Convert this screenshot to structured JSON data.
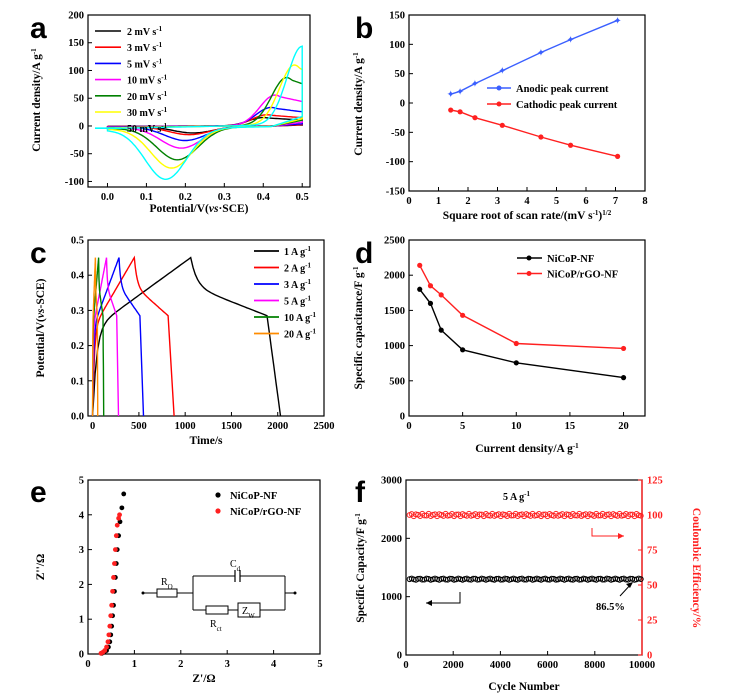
{
  "chart_data": [
    {
      "panel": "a",
      "type": "line",
      "xlabel_parts": [
        "Potential/V(",
        "vs",
        "·SCE)"
      ],
      "ylabel": "Current density/A g",
      "ylabel_sup": "-1",
      "xlim": [
        -0.05,
        0.52
      ],
      "ylim": [
        -110,
        200
      ],
      "xticks": [
        "0.0",
        "0.1",
        "0.2",
        "0.3",
        "0.4",
        "0.5"
      ],
      "yticks": [
        "-100",
        "-50",
        "0",
        "50",
        "100",
        "150",
        "200"
      ],
      "legend_unit": "mV s",
      "legend_unit_sup": "-1",
      "legend_position": "top-left",
      "series": [
        {
          "name": "2",
          "color": "#000000",
          "anodic_peak": [
            0.4,
            15
          ],
          "cathodic_peak": [
            0.22,
            -12
          ]
        },
        {
          "name": "3",
          "color": "#ff0000",
          "anodic_peak": [
            0.41,
            20
          ],
          "cathodic_peak": [
            0.21,
            -15
          ]
        },
        {
          "name": "5",
          "color": "#0000ff",
          "anodic_peak": [
            0.42,
            33
          ],
          "cathodic_peak": [
            0.2,
            -25
          ]
        },
        {
          "name": "10",
          "color": "#ff00ff",
          "anodic_peak": [
            0.43,
            55
          ],
          "cathodic_peak": [
            0.19,
            -38
          ]
        },
        {
          "name": "20",
          "color": "#008000",
          "anodic_peak": [
            0.46,
            86
          ],
          "cathodic_peak": [
            0.18,
            -58
          ]
        },
        {
          "name": "30",
          "color": "#ffff00",
          "anodic_peak": [
            0.48,
            108
          ],
          "cathodic_peak": [
            0.165,
            -72
          ]
        },
        {
          "name": "50",
          "color": "#00ffff",
          "anodic_peak": [
            0.5,
            141
          ],
          "cathodic_peak": [
            0.15,
            -91
          ]
        }
      ]
    },
    {
      "panel": "b",
      "type": "line",
      "xlabel": "Square root of scan rate/(mV s",
      "xlabel_sup1": "-1",
      "xlabel_mid": ")",
      "xlabel_sup2": "1/2",
      "ylabel": "Current density/A g",
      "ylabel_sup": "-1",
      "xlim": [
        0,
        8
      ],
      "ylim": [
        -150,
        150
      ],
      "xticks": [
        "0",
        "1",
        "2",
        "3",
        "4",
        "5",
        "6",
        "7",
        "8"
      ],
      "yticks": [
        "-150",
        "-100",
        "-50",
        "0",
        "50",
        "100",
        "150"
      ],
      "legend_position": "center-right",
      "x": [
        1.414,
        1.732,
        2.236,
        3.162,
        4.472,
        5.477,
        7.071
      ],
      "series": [
        {
          "name": "Anodic peak current",
          "color": "#3a5fff",
          "values": [
            15,
            20,
            33,
            55,
            86,
            108,
            141
          ]
        },
        {
          "name": "Cathodic peak current",
          "color": "#ff2020",
          "values": [
            -12,
            -15,
            -25,
            -38,
            -58,
            -72,
            -91
          ]
        }
      ]
    },
    {
      "panel": "c",
      "type": "line",
      "xlabel": "Time/s",
      "ylabel_parts": [
        "Potential/V(",
        "vs",
        "-SCE)"
      ],
      "xlim": [
        -50,
        2500
      ],
      "ylim": [
        0,
        0.5
      ],
      "xticks": [
        "0",
        "500",
        "1000",
        "1500",
        "2000",
        "2500"
      ],
      "yticks": [
        "0.0",
        "0.1",
        "0.2",
        "0.3",
        "0.4",
        "0.5"
      ],
      "legend_unit": "A g",
      "legend_unit_sup": "-1",
      "legend_position": "top-right",
      "series": [
        {
          "name": "1",
          "color": "#000000",
          "charge_time": 1060,
          "end_time": 2030
        },
        {
          "name": "2",
          "color": "#ff0000",
          "charge_time": 450,
          "end_time": 880
        },
        {
          "name": "3",
          "color": "#0000ff",
          "charge_time": 285,
          "end_time": 550
        },
        {
          "name": "5",
          "color": "#ff00ff",
          "charge_time": 150,
          "end_time": 280
        },
        {
          "name": "10",
          "color": "#008000",
          "charge_time": 65,
          "end_time": 120
        },
        {
          "name": "20",
          "color": "#ff8c00",
          "charge_time": 30,
          "end_time": 55
        }
      ]
    },
    {
      "panel": "d",
      "type": "line",
      "xlabel": "Current density/A g",
      "xlabel_sup": "-1",
      "ylabel": "Specific capacitance/F g",
      "ylabel_sup": "-1",
      "xlim": [
        0,
        22
      ],
      "ylim": [
        0,
        2500
      ],
      "xticks": [
        "0",
        "5",
        "10",
        "15",
        "20"
      ],
      "yticks": [
        "0",
        "500",
        "1000",
        "1500",
        "2000",
        "2500"
      ],
      "legend_position": "top-right",
      "x": [
        1,
        2,
        3,
        5,
        10,
        20
      ],
      "series": [
        {
          "name": "NiCoP-NF",
          "color": "#000000",
          "values": [
            1800,
            1600,
            1220,
            940,
            755,
            545
          ]
        },
        {
          "name": "NiCoP/rGO-NF",
          "color": "#ff2020",
          "values": [
            2140,
            1850,
            1720,
            1430,
            1030,
            960
          ]
        }
      ]
    },
    {
      "panel": "e",
      "type": "scatter",
      "xlabel": "Z'/Ω",
      "ylabel": "Z''/Ω",
      "xlim": [
        0,
        5
      ],
      "ylim": [
        0,
        5
      ],
      "xticks": [
        "0",
        "1",
        "2",
        "3",
        "4",
        "5"
      ],
      "yticks": [
        "0",
        "1",
        "2",
        "3",
        "4",
        "5"
      ],
      "legend_position": "top-right",
      "circuit_labels": {
        "r0": "R",
        "r0_sub": "O",
        "cd": "C",
        "cd_sub": "d",
        "rct": "R",
        "rct_sub": "ct",
        "zw": "Z",
        "zw_sub": "W"
      },
      "series": [
        {
          "name": "NiCoP-NF",
          "color": "#000000",
          "x": [
            0.3,
            0.35,
            0.4,
            0.44,
            0.47,
            0.49,
            0.51,
            0.53,
            0.55,
            0.57,
            0.59,
            0.61,
            0.63,
            0.66,
            0.69,
            0.73,
            0.77
          ],
          "y": [
            0.02,
            0.05,
            0.1,
            0.2,
            0.35,
            0.55,
            0.8,
            1.1,
            1.4,
            1.8,
            2.2,
            2.6,
            3.0,
            3.4,
            3.8,
            4.2,
            4.6
          ]
        },
        {
          "name": "NiCoP/rGO-NF",
          "color": "#ff2020",
          "x": [
            0.28,
            0.32,
            0.36,
            0.4,
            0.43,
            0.45,
            0.47,
            0.49,
            0.51,
            0.53,
            0.55,
            0.57,
            0.59,
            0.61,
            0.63,
            0.66,
            0.68
          ],
          "y": [
            0.02,
            0.05,
            0.1,
            0.2,
            0.35,
            0.55,
            0.8,
            1.1,
            1.4,
            1.8,
            2.2,
            2.6,
            3.0,
            3.4,
            3.7,
            3.9,
            4.0
          ]
        }
      ]
    },
    {
      "panel": "f",
      "type": "scatter",
      "xlabel": "Cycle Number",
      "ylabel_left": "Specific Capacity/F g",
      "ylabel_left_sup": "-1",
      "ylabel_right": "Coulombic Efficiency/%",
      "xlim": [
        0,
        10000
      ],
      "ylim_left": [
        0,
        3000
      ],
      "ylim_right": [
        0,
        125
      ],
      "xticks": [
        "0",
        "2000",
        "4000",
        "6000",
        "8000",
        "10000"
      ],
      "yticks_left": [
        "0",
        "1000",
        "2000",
        "3000"
      ],
      "yticks_right": [
        "0",
        "25",
        "50",
        "75",
        "100",
        "125"
      ],
      "annotation_rate": "5 A g",
      "annotation_rate_sup": "-1",
      "annotation_retention": "86.5%",
      "series": [
        {
          "name": "Specific Capacity",
          "color": "#000000",
          "axis": "left",
          "value": 1300
        },
        {
          "name": "Coulombic Efficiency",
          "color": "#ff2020",
          "axis": "right",
          "value": 100
        }
      ]
    }
  ],
  "panels": {
    "a": "a",
    "b": "b",
    "c": "c",
    "d": "d",
    "e": "e",
    "f": "f"
  }
}
